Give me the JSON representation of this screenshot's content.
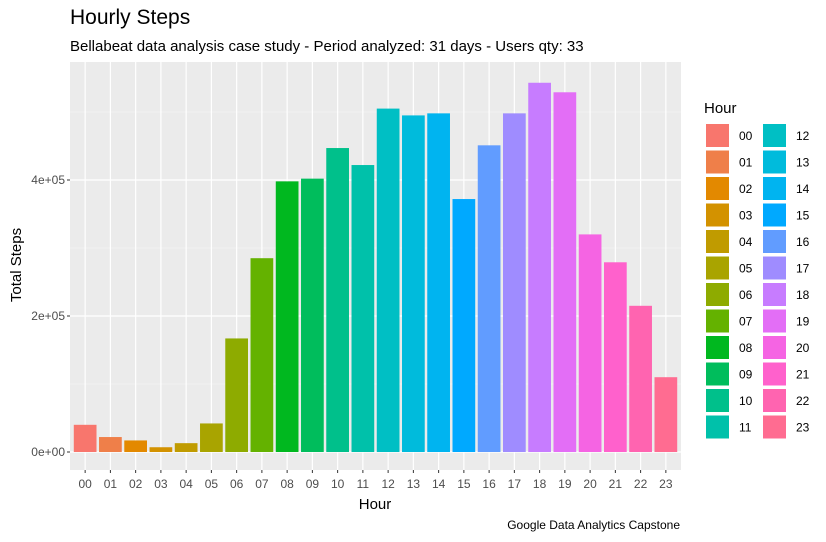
{
  "chart_data": {
    "type": "bar",
    "title": "Hourly Steps",
    "subtitle": "Bellabeat data analysis case study - Period analyzed: 31 days - Users qty: 33",
    "caption": "Google Data Analytics Capstone",
    "xlabel": "Hour",
    "ylabel": "Total Steps",
    "categories": [
      "00",
      "01",
      "02",
      "03",
      "04",
      "05",
      "06",
      "07",
      "08",
      "09",
      "10",
      "11",
      "12",
      "13",
      "14",
      "15",
      "16",
      "17",
      "18",
      "19",
      "20",
      "21",
      "22",
      "23"
    ],
    "values": [
      40000,
      22000,
      17000,
      7000,
      13000,
      42000,
      167000,
      285000,
      398000,
      402000,
      447000,
      422000,
      505000,
      495000,
      498000,
      372000,
      451000,
      498000,
      543000,
      529000,
      320000,
      279000,
      215000,
      110000
    ],
    "colors": [
      "#F8766D",
      "#EF7F49",
      "#E38900",
      "#D39200",
      "#C09B00",
      "#A9A400",
      "#8EAB00",
      "#64B200",
      "#00B81F",
      "#00BD5C",
      "#00C08B",
      "#00C1AA",
      "#00BFC4",
      "#00BBDC",
      "#00B4F0",
      "#00A9FF",
      "#619CFF",
      "#9F8CFF",
      "#C77CFF",
      "#E36EF6",
      "#F564E3",
      "#FF61CC",
      "#FF64B0",
      "#FF6C91"
    ],
    "ylim": [
      0,
      580000
    ],
    "yticks": [
      0,
      200000,
      400000
    ],
    "ytick_labels": [
      "0e+00",
      "2e+05",
      "4e+05"
    ],
    "grid": true,
    "legend": {
      "title": "Hour",
      "placement": "right",
      "columns": 2
    }
  }
}
